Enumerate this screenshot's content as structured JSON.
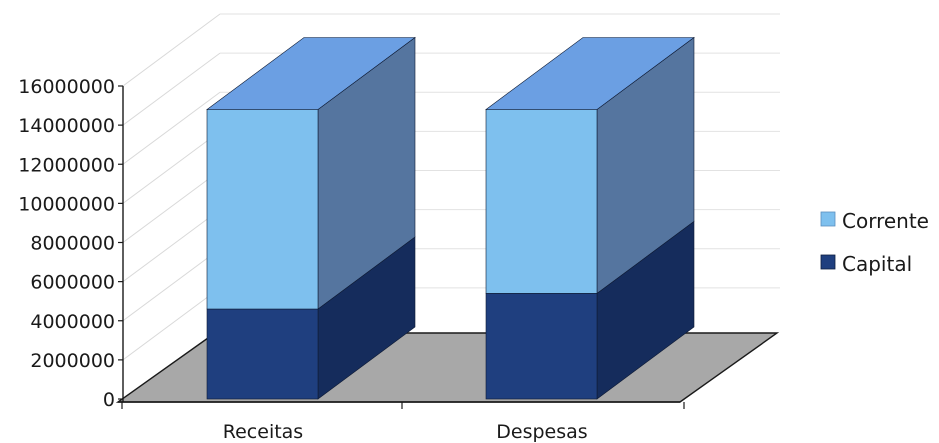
{
  "chart_data": {
    "type": "bar",
    "stacked": true,
    "style": "3d",
    "categories": [
      "Receitas",
      "Despesas"
    ],
    "series": [
      {
        "name": "Capital",
        "values": [
          4600000,
          5400000
        ],
        "color": "#1f3f7f"
      },
      {
        "name": "Corrente",
        "values": [
          10200000,
          9400000
        ],
        "color": "#7ec0ee"
      }
    ],
    "ylim": [
      0,
      16000000
    ],
    "y_ticks": [
      "0",
      "2000000",
      "4000000",
      "6000000",
      "8000000",
      "10000000",
      "12000000",
      "14000000",
      "16000000"
    ],
    "tick_values": [
      0,
      2000000,
      4000000,
      6000000,
      8000000,
      10000000,
      12000000,
      14000000,
      16000000
    ],
    "legend": {
      "position": "right",
      "items": [
        {
          "label": "Corrente",
          "color": "#7ec0ee"
        },
        {
          "label": "Capital",
          "color": "#1f3f7f"
        }
      ]
    },
    "grid": true,
    "floor_color": "#a8a8a8"
  }
}
